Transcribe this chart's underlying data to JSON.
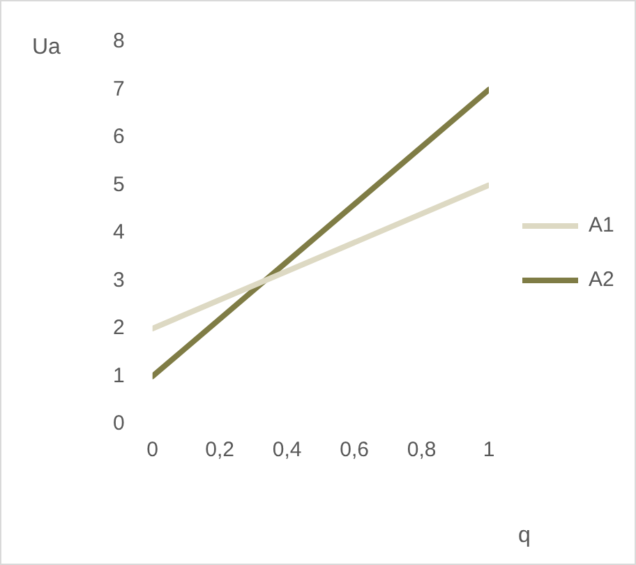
{
  "chart_data": {
    "type": "line",
    "ylabel": "Ua",
    "xlabel": "q",
    "x": [
      0,
      1
    ],
    "series": [
      {
        "name": "A1",
        "color": "#ddd9c3",
        "values": [
          2,
          5
        ]
      },
      {
        "name": "A2",
        "color": "#7f7c45",
        "values": [
          1,
          7
        ]
      }
    ],
    "xlim": [
      0,
      1
    ],
    "xticks": [
      0,
      {
        "value": 0.2,
        "label": "0,2"
      },
      {
        "value": 0.4,
        "label": "0,4"
      },
      {
        "value": 0.6,
        "label": "0,6"
      },
      {
        "value": 0.8,
        "label": "0,8"
      },
      1
    ],
    "ylim": [
      0,
      8
    ],
    "yticks": [
      0,
      1,
      2,
      3,
      4,
      5,
      6,
      7,
      8
    ],
    "grid": false,
    "legend": "right",
    "marker": "none",
    "line_style": "solid"
  }
}
